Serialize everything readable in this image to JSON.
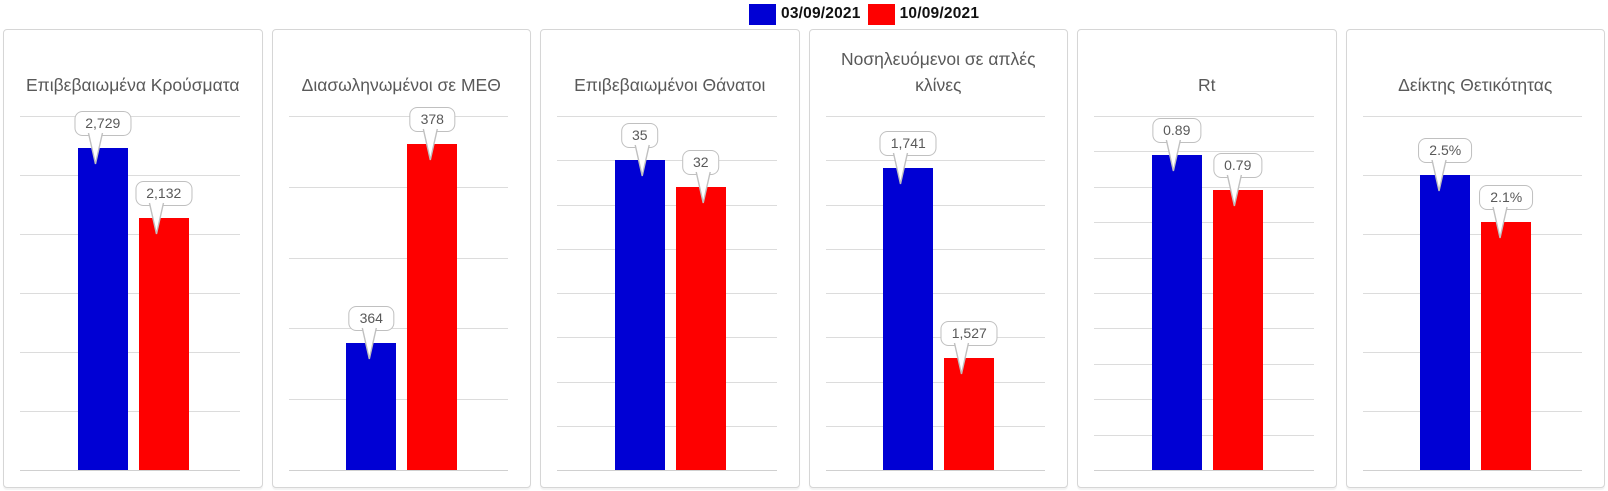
{
  "legend": {
    "items": [
      {
        "label": "03/09/2021",
        "color": "#0000d4"
      },
      {
        "label": "10/09/2021",
        "color": "#fe0000"
      }
    ]
  },
  "chart_data": [
    {
      "type": "bar",
      "title": "Επιβεβαιωμένα Κρούσματα",
      "categories": [
        "03/09/2021",
        "10/09/2021"
      ],
      "values": [
        2729,
        2132
      ],
      "labels": [
        "2,729",
        "2,132"
      ],
      "ylim": [
        0,
        3000
      ],
      "grid_intervals": 6,
      "grid": true,
      "legend_position": "top"
    },
    {
      "type": "bar",
      "title": "Διασωληνωμένοι σε ΜΕΘ",
      "categories": [
        "03/09/2021",
        "10/09/2021"
      ],
      "values": [
        364,
        378
      ],
      "labels": [
        "364",
        "378"
      ],
      "ylim": [
        355,
        380
      ],
      "grid_intervals": 5,
      "grid": true,
      "legend_position": "top"
    },
    {
      "type": "bar",
      "title": "Επιβεβαιωμένοι Θάνατοι",
      "categories": [
        "03/09/2021",
        "10/09/2021"
      ],
      "values": [
        35,
        32
      ],
      "labels": [
        "35",
        "32"
      ],
      "ylim": [
        0,
        40
      ],
      "grid_intervals": 8,
      "grid": true,
      "legend_position": "top"
    },
    {
      "type": "bar",
      "title": "Νοσηλευόμενοι σε απλές κλίνες",
      "categories": [
        "03/09/2021",
        "10/09/2021"
      ],
      "values": [
        1741,
        1527
      ],
      "labels": [
        "1,741",
        "1,527"
      ],
      "ylim": [
        1400,
        1800
      ],
      "grid_intervals": 8,
      "grid": true,
      "legend_position": "top"
    },
    {
      "type": "bar",
      "title": "Rt",
      "categories": [
        "03/09/2021",
        "10/09/2021"
      ],
      "values": [
        0.89,
        0.79
      ],
      "labels": [
        "0.89",
        "0.79"
      ],
      "ylim": [
        0,
        1.0
      ],
      "grid_intervals": 10,
      "grid": true,
      "legend_position": "top"
    },
    {
      "type": "bar",
      "title": "Δείκτης Θετικότητας",
      "categories": [
        "03/09/2021",
        "10/09/2021"
      ],
      "values": [
        2.5,
        2.1
      ],
      "labels": [
        "2.5%",
        "2.1%"
      ],
      "ylim": [
        0,
        3.0
      ],
      "grid_intervals": 6,
      "grid": true,
      "legend_position": "top"
    }
  ]
}
